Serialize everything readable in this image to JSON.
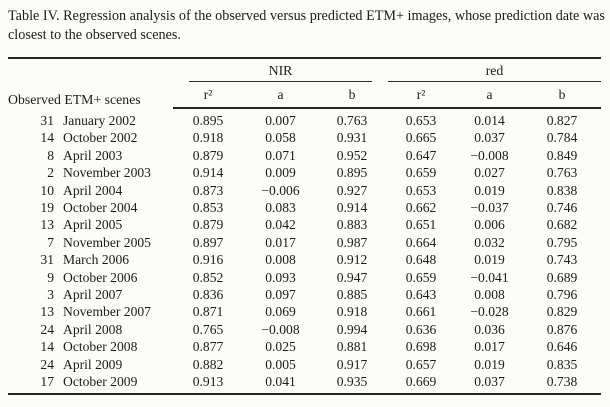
{
  "caption": "Table IV. Regression analysis of the observed versus predicted ETM+ images, whose prediction date was closest to the observed scenes.",
  "table": {
    "scene_header": "Observed ETM+ scenes",
    "groups": [
      {
        "label": "NIR"
      },
      {
        "label": "red"
      }
    ],
    "sub_headers": [
      "r²",
      "a",
      "b",
      "r²",
      "a",
      "b"
    ],
    "rows": [
      {
        "day": "31",
        "date": "January 2002",
        "values": [
          "0.895",
          "0.007",
          "0.763",
          "0.653",
          "0.014",
          "0.827"
        ]
      },
      {
        "day": "14",
        "date": "October 2002",
        "values": [
          "0.918",
          "0.058",
          "0.931",
          "0.665",
          "0.037",
          "0.784"
        ]
      },
      {
        "day": "8",
        "date": "April 2003",
        "values": [
          "0.879",
          "0.071",
          "0.952",
          "0.647",
          "−0.008",
          "0.849"
        ]
      },
      {
        "day": "2",
        "date": "November 2003",
        "values": [
          "0.914",
          "0.009",
          "0.895",
          "0.659",
          "0.027",
          "0.763"
        ]
      },
      {
        "day": "10",
        "date": "April 2004",
        "values": [
          "0.873",
          "−0.006",
          "0.927",
          "0.653",
          "0.019",
          "0.838"
        ]
      },
      {
        "day": "19",
        "date": "October 2004",
        "values": [
          "0.853",
          "0.083",
          "0.914",
          "0.662",
          "−0.037",
          "0.746"
        ]
      },
      {
        "day": "13",
        "date": "April 2005",
        "values": [
          "0.879",
          "0.042",
          "0.883",
          "0.651",
          "0.006",
          "0.682"
        ]
      },
      {
        "day": "7",
        "date": "November 2005",
        "values": [
          "0.897",
          "0.017",
          "0.987",
          "0.664",
          "0.032",
          "0.795"
        ]
      },
      {
        "day": "31",
        "date": "March 2006",
        "values": [
          "0.916",
          "0.008",
          "0.912",
          "0.648",
          "0.019",
          "0.743"
        ]
      },
      {
        "day": "9",
        "date": "October 2006",
        "values": [
          "0.852",
          "0.093",
          "0.947",
          "0.659",
          "−0.041",
          "0.689"
        ]
      },
      {
        "day": "3",
        "date": "April 2007",
        "values": [
          "0.836",
          "0.097",
          "0.885",
          "0.643",
          "0.008",
          "0.796"
        ]
      },
      {
        "day": "13",
        "date": "November 2007",
        "values": [
          "0.871",
          "0.069",
          "0.918",
          "0.661",
          "−0.028",
          "0.829"
        ]
      },
      {
        "day": "24",
        "date": "April 2008",
        "values": [
          "0.765",
          "−0.008",
          "0.994",
          "0.636",
          "0.036",
          "0.876"
        ]
      },
      {
        "day": "14",
        "date": "October 2008",
        "values": [
          "0.877",
          "0.025",
          "0.881",
          "0.698",
          "0.017",
          "0.646"
        ]
      },
      {
        "day": "24",
        "date": "April 2009",
        "values": [
          "0.882",
          "0.005",
          "0.917",
          "0.657",
          "0.019",
          "0.835"
        ]
      },
      {
        "day": "17",
        "date": "October 2009",
        "values": [
          "0.913",
          "0.041",
          "0.935",
          "0.669",
          "0.037",
          "0.738"
        ]
      }
    ]
  }
}
